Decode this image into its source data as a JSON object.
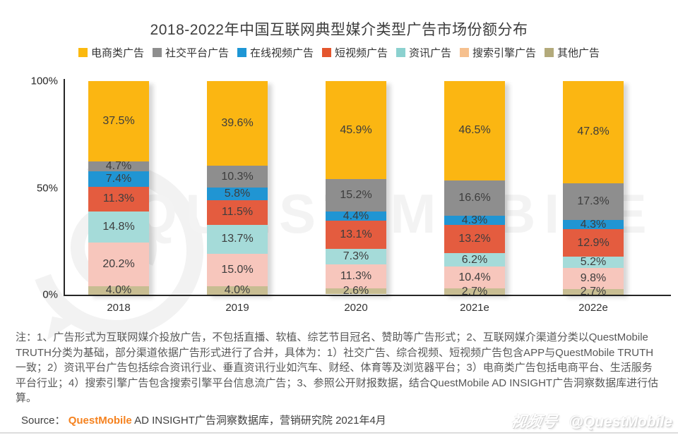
{
  "title": "2018-2022年中国互联网典型媒介类型广告市场份额分布",
  "chart_data": {
    "type": "bar",
    "stacked": true,
    "orientation": "vertical",
    "categories": [
      "2018",
      "2019",
      "2020",
      "2021e",
      "2022e"
    ],
    "series": [
      {
        "name": "电商类广告",
        "color": "#FBB612",
        "legend_color": "#FBB90F",
        "values": [
          37.5,
          39.6,
          45.9,
          46.5,
          47.8
        ]
      },
      {
        "name": "社交平台广告",
        "color": "#8E8E8E",
        "legend_color": "#8E8E8E",
        "values": [
          4.7,
          10.3,
          15.2,
          16.6,
          17.3
        ]
      },
      {
        "name": "在线视频广告",
        "color": "#2095D3",
        "legend_color": "#1E96D5",
        "values": [
          7.4,
          5.8,
          4.4,
          4.3,
          4.3
        ]
      },
      {
        "name": "短视频广告",
        "color": "#E45C3F",
        "legend_color": "#E4562E",
        "values": [
          11.3,
          11.5,
          13.1,
          13.2,
          12.9
        ]
      },
      {
        "name": "资讯广告",
        "color": "#A5DBD9",
        "legend_color": "#8BD1CF",
        "values": [
          14.8,
          13.7,
          7.3,
          6.2,
          5.2
        ]
      },
      {
        "name": "搜索引擎广告",
        "color": "#F7C6BC",
        "legend_color": "#F6C08E",
        "values": [
          20.2,
          15.0,
          11.3,
          10.4,
          9.8
        ]
      },
      {
        "name": "其他广告",
        "color": "#C8BD92",
        "legend_color": "#B3AA7B",
        "values": [
          4.0,
          4.0,
          2.6,
          2.7,
          2.7
        ]
      }
    ],
    "ylim": [
      0,
      100
    ],
    "yticks": [
      "100%",
      "50%",
      "0%"
    ],
    "value_suffix": "%",
    "legend_position": "top",
    "grid": false
  },
  "notes": "注：1、广告形式为互联网媒介投放广告，不包括直播、软植、综艺节目冠名、赞助等广告形式；2、互联网媒介渠道分类以QuestMobile TRUTH分类为基础，部分渠道依据广告形式进行了合并，具体为：1）社交广告、综合视频、短视频广告包含APP与QuestMobile TRUTH一致；2）资讯平台广告包括综合资讯行业、垂直资讯行业如汽车、财经、体育等及浏览器平台；3）电商类广告包括电商平台、生活服务平台行业；4）搜索引擎广告包含搜索引擎平台信息流广告；3、参照公开财报数据，结合QuestMobile AD INSIGHT广告洞察数据库进行估算。",
  "source": {
    "prefix": "Source：",
    "brand": "QuestMobile",
    "brand_color": "#F5821F",
    "rest": " AD INSIGHT广告洞察数据库，营销研究院 2021年4月"
  },
  "watermark": {
    "big_text": "QUEST MOBILE",
    "badge": "视频号",
    "handle": "@QuestMobile"
  }
}
